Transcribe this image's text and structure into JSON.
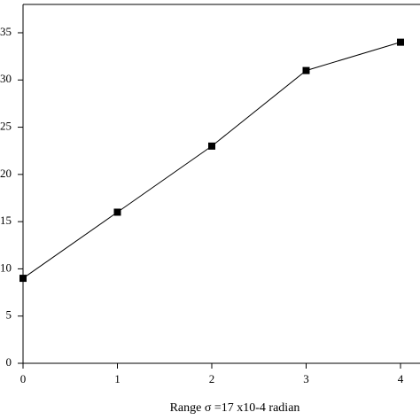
{
  "chart_data": {
    "type": "line",
    "x_label": "Range σ =17 x10-4 radian",
    "x": [
      0,
      1,
      2,
      3,
      4
    ],
    "values": [
      9,
      16,
      23,
      31,
      34
    ],
    "color": "#000000",
    "xlim": [
      0,
      4.2
    ],
    "ylim": [
      0,
      38
    ],
    "xticks": [
      0,
      1,
      2,
      3,
      4
    ],
    "yticks": [
      0,
      5,
      10,
      15,
      20,
      25,
      30,
      35
    ]
  }
}
